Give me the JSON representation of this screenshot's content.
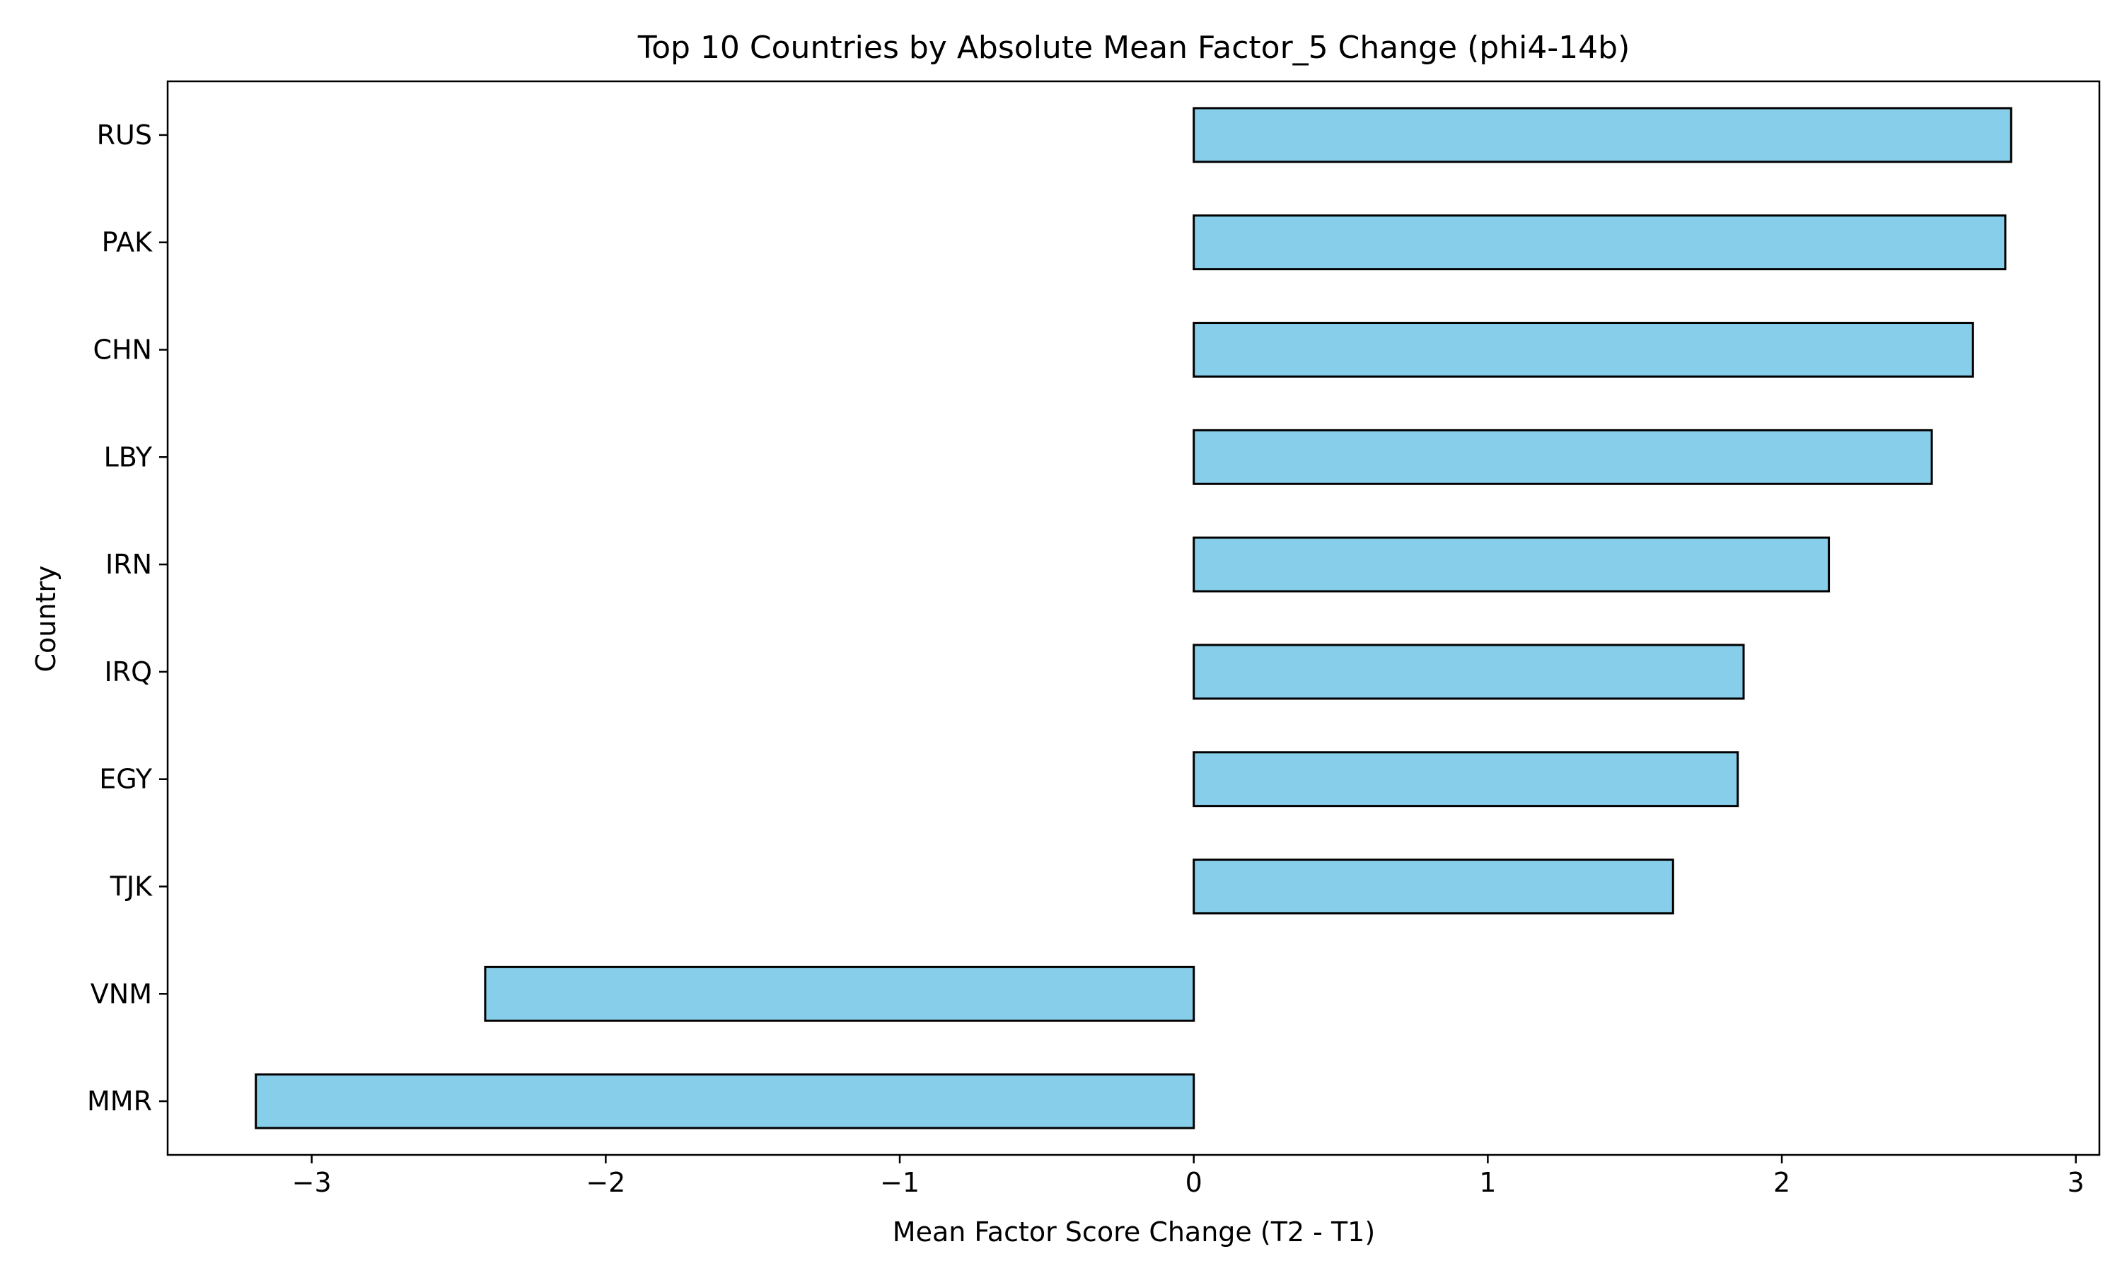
{
  "chart_data": {
    "type": "bar",
    "orientation": "horizontal",
    "title": "Top 10 Countries by Absolute Mean Factor_5 Change (phi4-14b)",
    "xlabel": "Mean Factor Score Change (T2 - T1)",
    "ylabel": "Country",
    "categories": [
      "RUS",
      "PAK",
      "CHN",
      "LBY",
      "IRN",
      "IRQ",
      "EGY",
      "TJK",
      "VNM",
      "MMR"
    ],
    "values": [
      2.78,
      2.76,
      2.65,
      2.51,
      2.16,
      1.87,
      1.85,
      1.63,
      -2.41,
      -3.19
    ],
    "xlim": [
      -3.49,
      3.08
    ],
    "xticks": [
      -3,
      -2,
      -1,
      0,
      1,
      2,
      3
    ],
    "xtick_labels": [
      "−3",
      "−2",
      "−1",
      "0",
      "1",
      "2",
      "3"
    ],
    "grid": false,
    "legend": "none",
    "colors": {
      "bar_fill": "#87CEEB",
      "bar_edge": "#000000"
    }
  }
}
